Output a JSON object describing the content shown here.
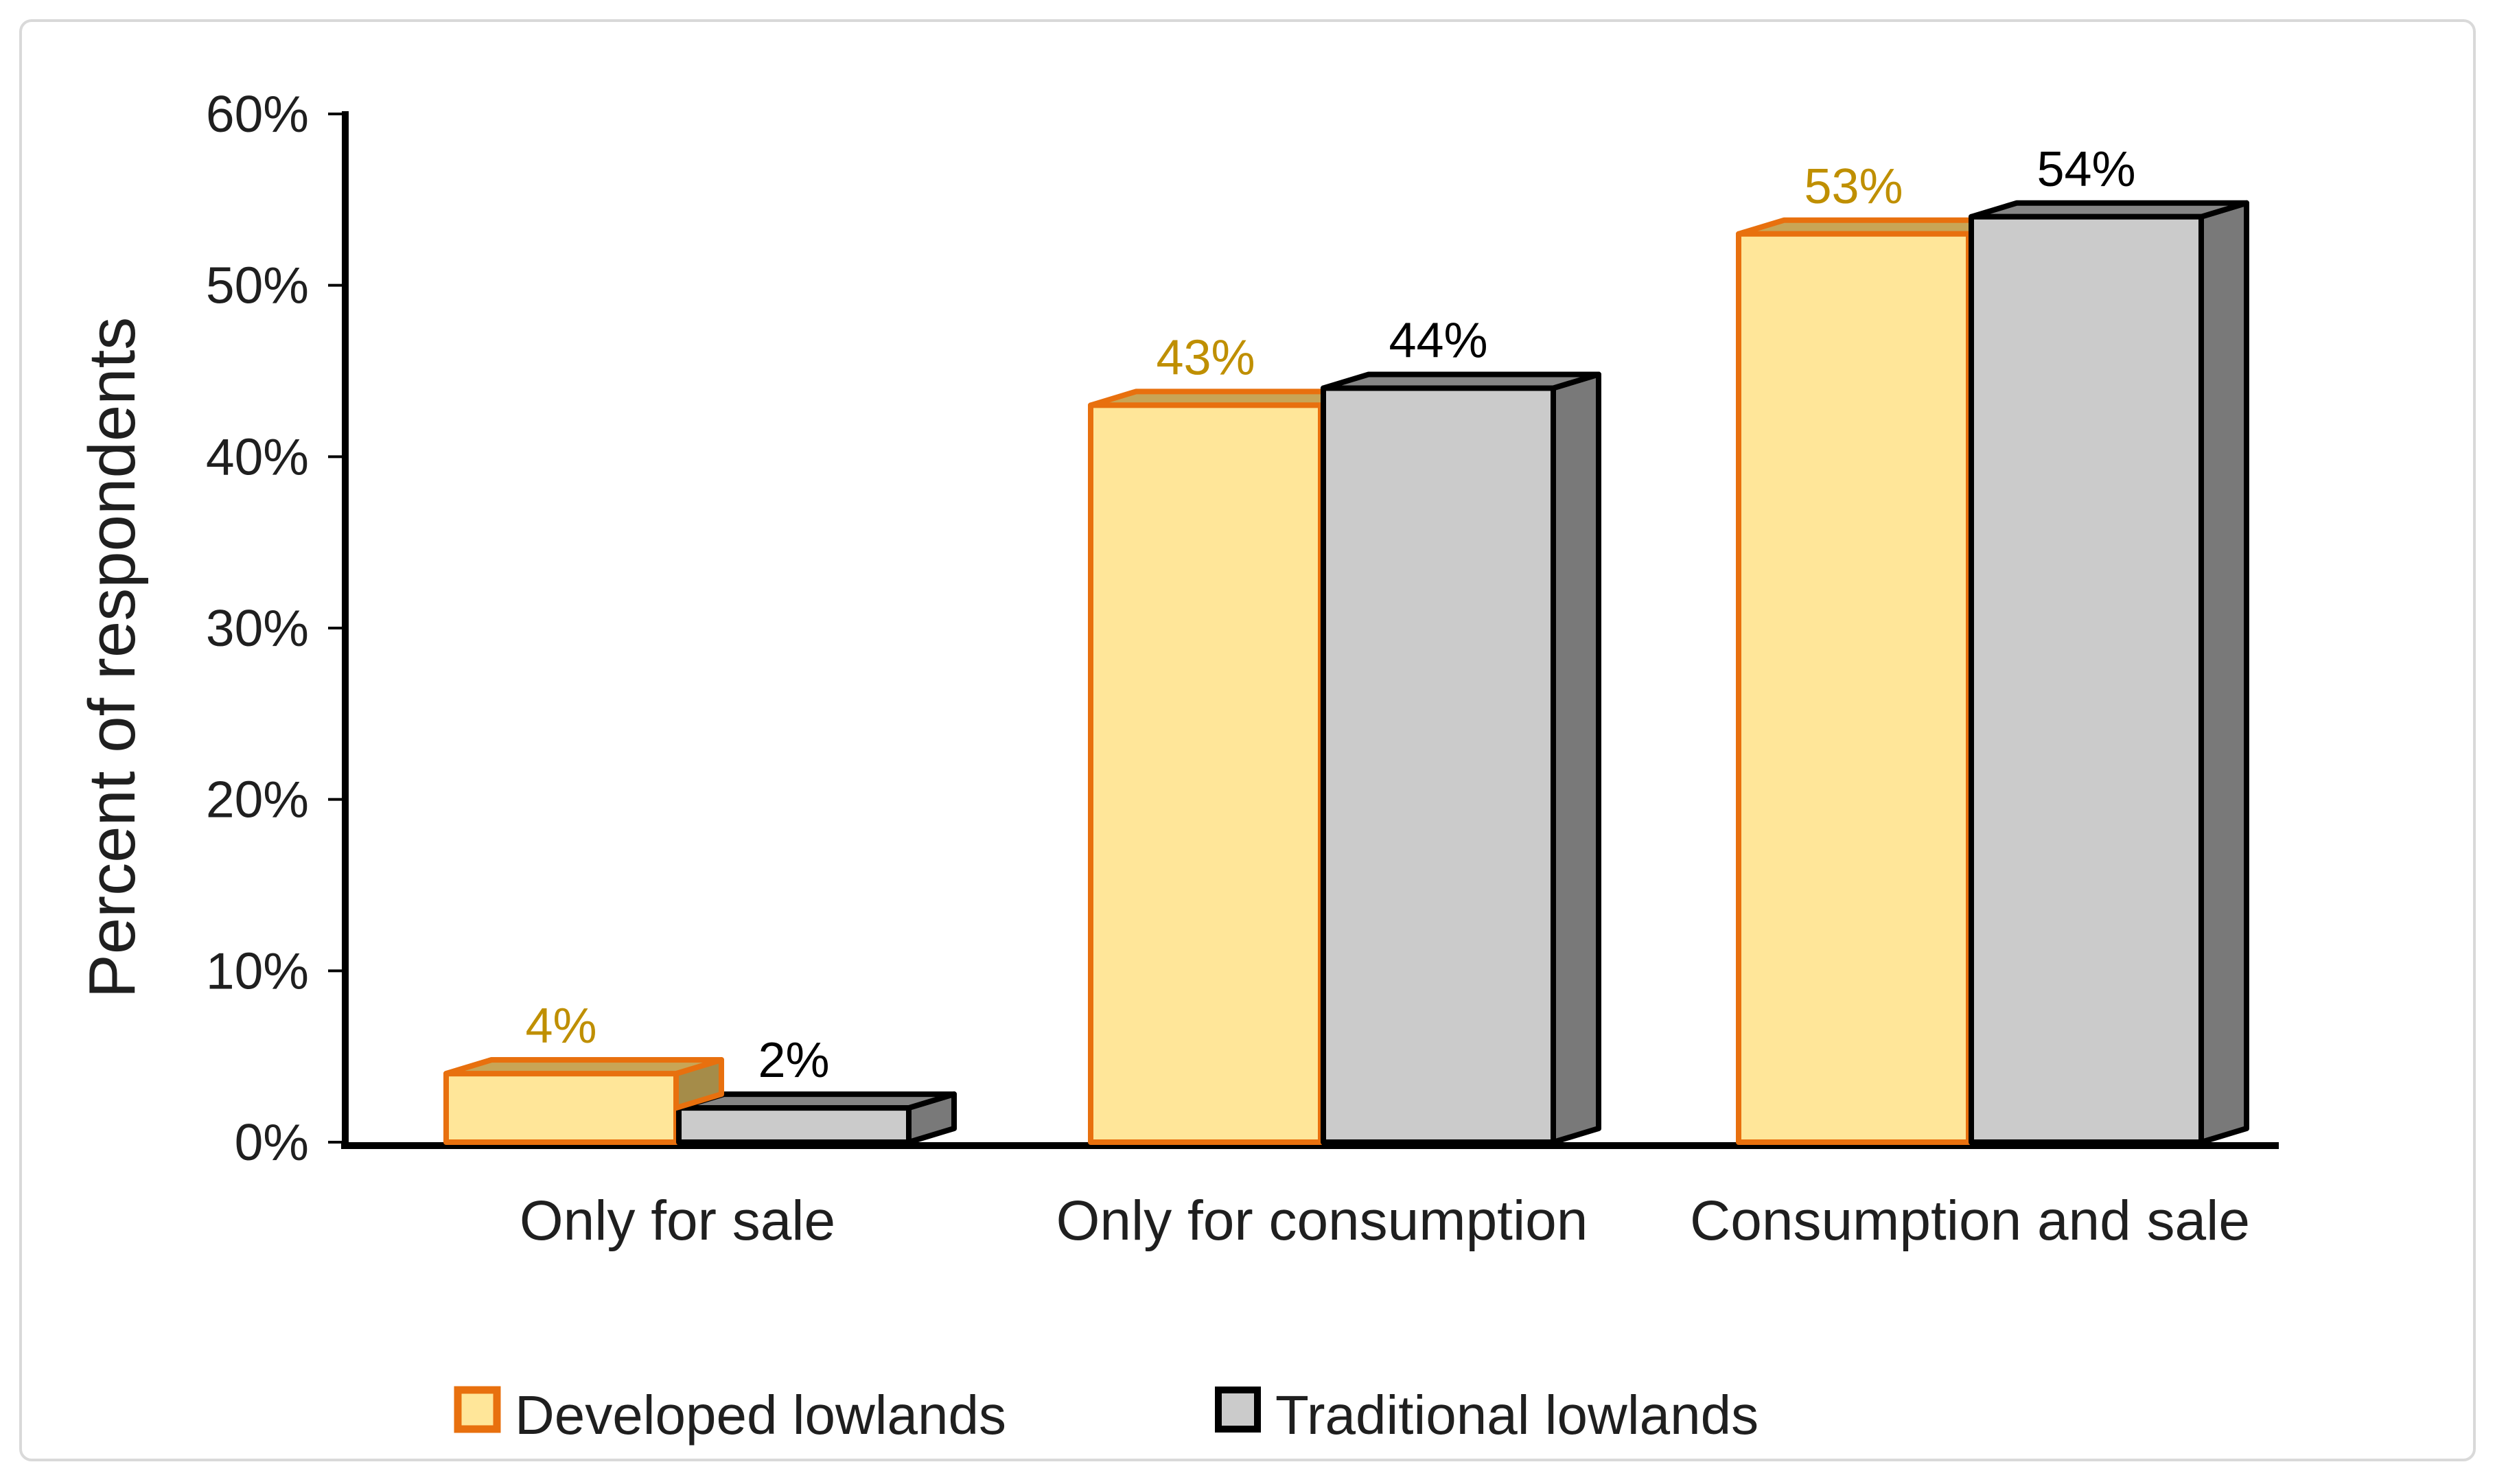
{
  "chart_data": {
    "type": "bar",
    "projection": "3d-column",
    "title": "",
    "categories": [
      "Only for sale",
      "Only for consumption",
      "Consumption and sale"
    ],
    "series": [
      {
        "name": "Developed lowlands",
        "values": [
          4,
          43,
          53
        ],
        "data_labels": [
          "4%",
          "43%",
          "53%"
        ]
      },
      {
        "name": "Traditional lowlands",
        "values": [
          2,
          44,
          54
        ],
        "data_labels": [
          "2%",
          "44%",
          "54%"
        ]
      }
    ],
    "xlabel": "",
    "ylabel": "Percent of respondents",
    "y_axis": {
      "min": 0,
      "max": 60,
      "tick_step": 10,
      "tick_labels": [
        "0%",
        "10%",
        "20%",
        "30%",
        "40%",
        "50%",
        "60%"
      ]
    },
    "grid": "off",
    "legend_position": "bottom",
    "colors": {
      "developed_fill": "#FFE699",
      "developed_border": "#E8700E",
      "developed_top": "#C8A556",
      "developed_side": "#A58C49",
      "developed_label": "#BF8F00",
      "traditional_fill": "#CBCBCB",
      "traditional_border": "#000000",
      "traditional_top": "#858585",
      "traditional_side": "#797979",
      "traditional_label": "#000000",
      "axis_line": "#000000",
      "text": "#1F1F1F",
      "frame_border": "#D9D9D9",
      "background": "#FFFFFF"
    }
  }
}
